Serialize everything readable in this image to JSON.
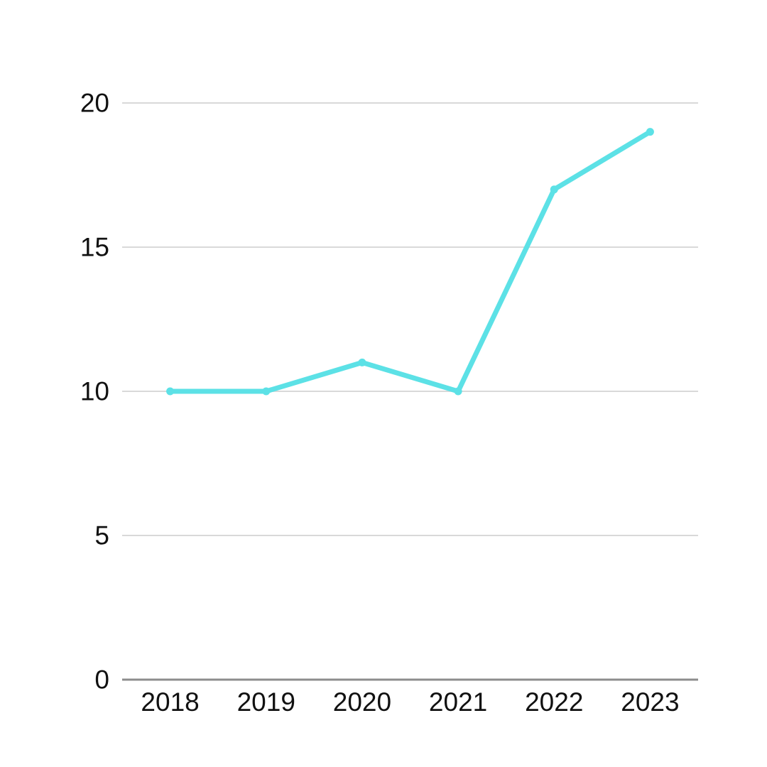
{
  "chart_data": {
    "type": "line",
    "title": "",
    "xlabel": "",
    "ylabel": "",
    "categories": [
      "2018",
      "2019",
      "2020",
      "2021",
      "2022",
      "2023"
    ],
    "values": [
      10,
      10,
      11,
      10,
      17,
      19
    ],
    "series": [
      {
        "name": "values",
        "values": [
          10,
          10,
          11,
          10,
          17,
          19
        ]
      }
    ],
    "ylim": [
      0,
      20
    ],
    "yticks": [
      0,
      5,
      10,
      15,
      20
    ],
    "grid": true,
    "legend_position": "none",
    "marker": "circle",
    "colors": {
      "line": "#5CE1E6",
      "marker": "#5CE1E6",
      "gridline": "#d9d9d9",
      "axis_line": "#8c8c8c",
      "tick_text": "#111111",
      "background": "#ffffff"
    }
  }
}
